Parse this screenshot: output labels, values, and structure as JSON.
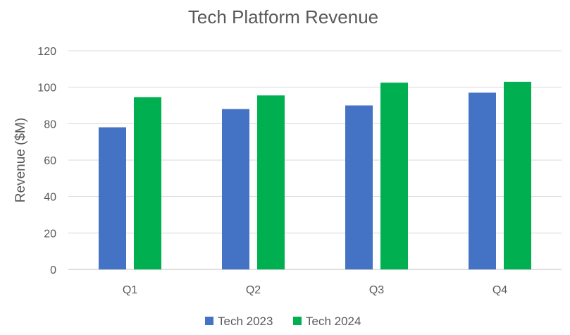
{
  "chart_data": {
    "type": "bar",
    "title": "Tech Platform Revenue",
    "xlabel": "",
    "ylabel": "Revenue ($M)",
    "categories": [
      "Q1",
      "Q2",
      "Q3",
      "Q4"
    ],
    "ylim": [
      0,
      120
    ],
    "yticks": [
      0,
      20,
      40,
      60,
      80,
      100,
      120
    ],
    "grid": true,
    "legend_position": "bottom",
    "series": [
      {
        "name": "Tech 2023",
        "color": "#4472C4",
        "values": [
          78,
          88,
          90,
          97
        ]
      },
      {
        "name": "Tech 2024",
        "color": "#00B050",
        "values": [
          94.5,
          95.5,
          102.5,
          103
        ]
      }
    ]
  }
}
